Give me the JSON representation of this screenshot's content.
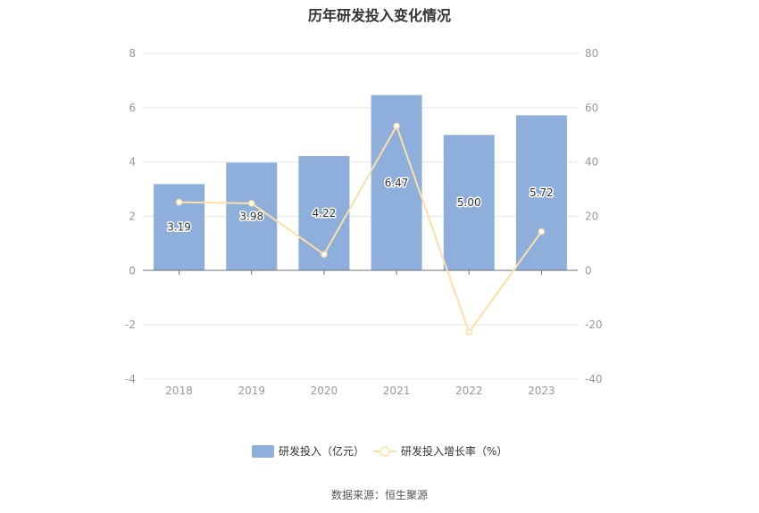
{
  "title": "历年研发投入变化情况",
  "source": "数据来源：恒生聚源",
  "colors": {
    "bar": "#8eaedb",
    "line": "#fde0a6",
    "line_point_fill": "#ffffff",
    "grid": "#e6e6e6",
    "axis_text": "#999999",
    "label_text": "#333333",
    "label_halo": "#ffffff"
  },
  "chart_data": {
    "type": "bar",
    "categories": [
      "2018",
      "2019",
      "2020",
      "2021",
      "2022",
      "2023"
    ],
    "series": [
      {
        "name": "研发投入（亿元）",
        "type": "bar",
        "axis": "left",
        "values": [
          3.19,
          3.98,
          4.22,
          6.47,
          5.0,
          5.72
        ],
        "labels": [
          "3.19",
          "3.98",
          "4.22",
          "6.47",
          "5.00",
          "5.72"
        ]
      },
      {
        "name": "研发投入增长率（%）",
        "type": "line",
        "axis": "right",
        "values": [
          25.2,
          24.8,
          6.0,
          53.3,
          -22.7,
          14.4
        ]
      }
    ],
    "y_left": {
      "ylim": [
        -4,
        8
      ],
      "ticks": [
        "-4",
        "-2",
        "0",
        "2",
        "4",
        "6",
        "8"
      ]
    },
    "y_right": {
      "ylim": [
        -40,
        80
      ],
      "ticks": [
        "-40",
        "-20",
        "0",
        "20",
        "40",
        "60",
        "80"
      ]
    },
    "grid": true,
    "legend_position": "bottom"
  }
}
